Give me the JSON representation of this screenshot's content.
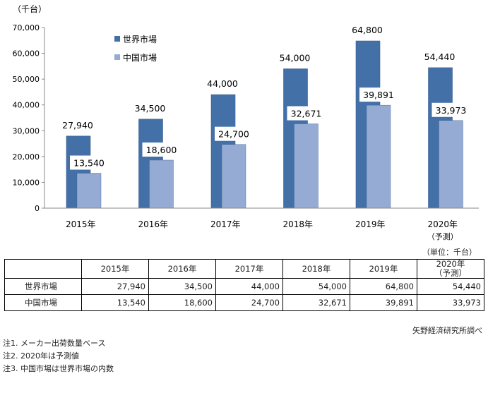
{
  "chart_data": {
    "type": "bar",
    "y_unit": "（千台）",
    "ylim": [
      0,
      70000
    ],
    "yticks": [
      0,
      10000,
      20000,
      30000,
      40000,
      50000,
      60000,
      70000
    ],
    "ytick_labels": [
      "0",
      "10,000",
      "20,000",
      "30,000",
      "40,000",
      "50,000",
      "60,000",
      "70,000"
    ],
    "categories": [
      "2015年",
      "2016年",
      "2017年",
      "2018年",
      "2019年",
      "2020年"
    ],
    "category_sublabels": [
      "",
      "",
      "",
      "",
      "",
      "（予測）"
    ],
    "series": [
      {
        "name": "世界市場",
        "color": "#4470A8",
        "values": [
          27940,
          34500,
          44000,
          54000,
          64800,
          54440
        ],
        "labels": [
          "27,940",
          "34,500",
          "44,000",
          "54,000",
          "64,800",
          "54,440"
        ]
      },
      {
        "name": "中国市場",
        "color": "#95ABD3",
        "values": [
          13540,
          18600,
          24700,
          32671,
          39891,
          33973
        ],
        "labels": [
          "13,540",
          "18,600",
          "24,700",
          "32,671",
          "39,891",
          "33,973"
        ]
      }
    ],
    "legend": "top-left",
    "grid": false
  },
  "table": {
    "unit_label": "（単位：千台）",
    "headers": [
      "2015年",
      "2016年",
      "2017年",
      "2018年",
      "2019年",
      "2020年"
    ],
    "header_sub": [
      "",
      "",
      "",
      "",
      "",
      "（予測）"
    ],
    "rows": [
      {
        "label": "世界市場",
        "values": [
          "27,940",
          "34,500",
          "44,000",
          "54,000",
          "64,800",
          "54,440"
        ]
      },
      {
        "label": "中国市場",
        "values": [
          "13,540",
          "18,600",
          "24,700",
          "32,671",
          "39,891",
          "33,973"
        ]
      }
    ]
  },
  "source": "矢野経済研究所調べ",
  "notes": [
    "注1.  メーカー出荷数量ベース",
    "注2.  2020年は予測値",
    "注3.  中国市場は世界市場の内数"
  ]
}
